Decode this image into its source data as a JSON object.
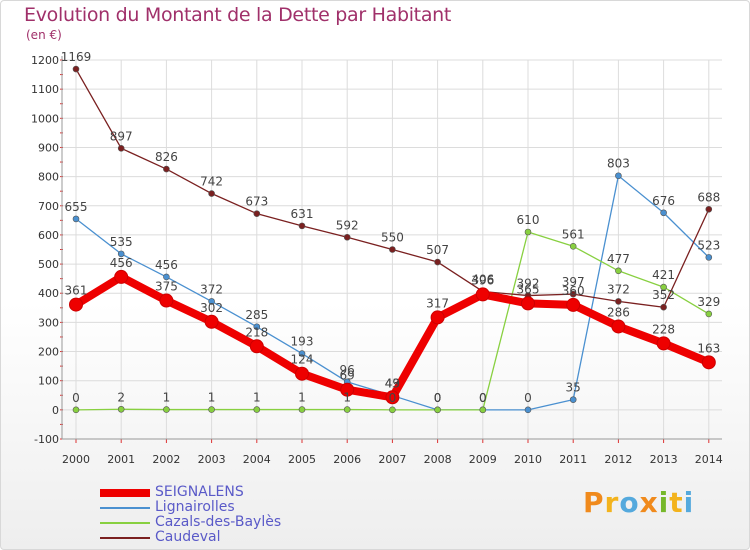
{
  "title": "Evolution du Montant de la Dette par Habitant",
  "subtitle": "(en €)",
  "logo": {
    "letters": [
      "P",
      "r",
      "o",
      "x",
      "i",
      "t",
      "i"
    ],
    "colors": [
      "#f08a1c",
      "#f3b31d",
      "#54a9dd",
      "#f08a1c",
      "#76b82a",
      "#f3b31d",
      "#54a9dd"
    ]
  },
  "chart_data": {
    "type": "line",
    "title": "Evolution du Montant de la Dette par Habitant",
    "ylabel": "(en €)",
    "xlabel": "",
    "x": [
      "2000",
      "2001",
      "2002",
      "2003",
      "2004",
      "2005",
      "2006",
      "2007",
      "2008",
      "2009",
      "2010",
      "2011",
      "2012",
      "2013",
      "2014"
    ],
    "ylim": [
      -100,
      1200
    ],
    "yticks": [
      "-100",
      "0",
      "100",
      "200",
      "300",
      "400",
      "500",
      "600",
      "700",
      "800",
      "900",
      "1000",
      "1100",
      "1200"
    ],
    "grid": true,
    "legend_position": "bottom-left",
    "series": [
      {
        "name": "SEIGNALENS",
        "color": "#ee0000",
        "values": [
          361,
          456,
          375,
          302,
          218,
          124,
          69,
          43,
          317,
          396,
          365,
          360,
          286,
          228,
          163
        ],
        "labels": [
          "361",
          "456",
          "375",
          "302",
          "218",
          "124",
          "69",
          "43",
          "317",
          "396",
          "365",
          "360",
          "286",
          "228",
          "163"
        ]
      },
      {
        "name": "Lignairolles",
        "color": "#4a90d0",
        "values": [
          655,
          535,
          456,
          372,
          285,
          193,
          96,
          49,
          0,
          0,
          0,
          35,
          803,
          676,
          523
        ],
        "labels": [
          "655",
          "535",
          "456",
          "372",
          "285",
          "193",
          "96",
          "49",
          "0",
          "0",
          "0",
          "35",
          "803",
          "676",
          "523"
        ]
      },
      {
        "name": "Cazals-des-Baylès",
        "color": "#88d040",
        "values": [
          0,
          2,
          1,
          1,
          1,
          1,
          1,
          0,
          0,
          0,
          610,
          561,
          477,
          421,
          329
        ],
        "labels": [
          "0",
          "2",
          "1",
          "1",
          "1",
          "1",
          "1",
          "0",
          "0",
          "0",
          "610",
          "561",
          "477",
          "421",
          "329"
        ]
      },
      {
        "name": "Caudeval",
        "color": "#7a2020",
        "values": [
          1169,
          897,
          826,
          742,
          673,
          631,
          592,
          550,
          507,
          406,
          392,
          397,
          372,
          352,
          688
        ],
        "labels": [
          "1169",
          "897",
          "826",
          "742",
          "673",
          "631",
          "592",
          "550",
          "507",
          "406",
          "392",
          "397",
          "372",
          "352",
          "688"
        ]
      }
    ]
  }
}
